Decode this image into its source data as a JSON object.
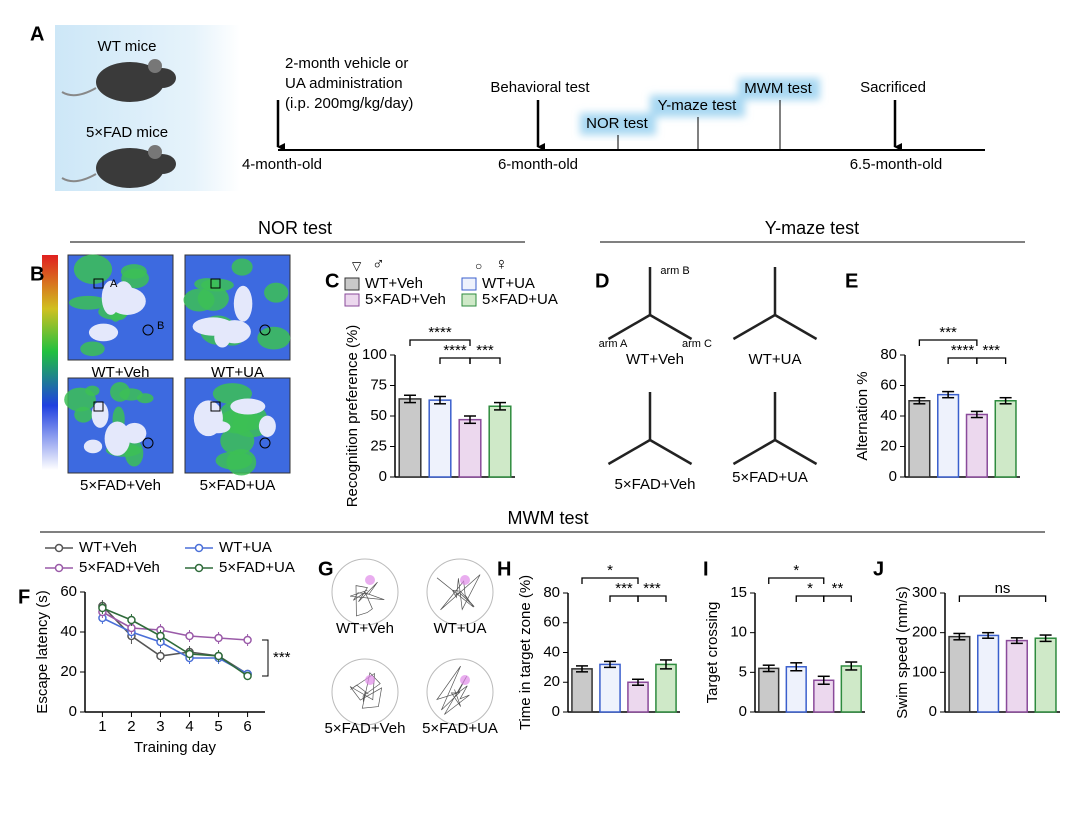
{
  "panel_letters": [
    "A",
    "B",
    "C",
    "D",
    "E",
    "F",
    "G",
    "H",
    "I",
    "J"
  ],
  "timeline": {
    "mice": [
      "WT mice",
      "5×FAD mice"
    ],
    "admin": [
      "2-month vehicle or",
      "UA administration",
      "(i.p. 200mg/kg/day)"
    ],
    "events": [
      "Behavioral test",
      "NOR test",
      "Y-maze test",
      "MWM test",
      "Sacrificed"
    ],
    "ages": [
      "4-month-old",
      "6-month-old",
      "6.5-month-old"
    ]
  },
  "sections": [
    "NOR test",
    "Y-maze test",
    "MWM test"
  ],
  "heatmap": {
    "labels": [
      "WT+Veh",
      "WT+UA",
      "5×FAD+Veh",
      "5×FAD+UA"
    ],
    "objects": [
      "A",
      "B"
    ]
  },
  "ymaze": {
    "labels": [
      "WT+Veh",
      "WT+UA",
      "5×FAD+Veh",
      "5×FAD+UA"
    ],
    "arms": [
      "arm A",
      "arm B",
      "arm C"
    ]
  },
  "traces": {
    "labels": [
      "WT+Veh",
      "WT+UA",
      "5×FAD+Veh",
      "5×FAD+UA"
    ]
  },
  "groups": [
    {
      "name": "WT+Veh",
      "fill": "#c9c9c9",
      "stroke": "#333333"
    },
    {
      "name": "WT+UA",
      "fill": "#eef2fc",
      "stroke": "#3a5fcd"
    },
    {
      "name": "5×FAD+Veh",
      "fill": "#ecd8ee",
      "stroke": "#8a4a9a"
    },
    {
      "name": "5×FAD+UA",
      "fill": "#cfe9c8",
      "stroke": "#2e8b3e"
    }
  ],
  "sex_legend": [
    {
      "symbol": "▽",
      "label": "♂"
    },
    {
      "symbol": "○",
      "label": "♀"
    }
  ],
  "chart_data": [
    {
      "type": "bar",
      "ylabel": "Recognition preference (%)",
      "values": [
        64,
        63,
        47,
        58
      ],
      "errors": [
        3,
        3,
        3,
        3
      ],
      "ylim": [
        0,
        100
      ],
      "yticks": [
        0,
        25,
        50,
        75,
        100
      ],
      "comparisons": [
        {
          "pair": [
            1,
            2
          ],
          "label": "****"
        },
        {
          "pair": [
            0,
            2
          ],
          "label": "****"
        },
        {
          "pair": [
            2,
            3
          ],
          "label": "***"
        }
      ]
    },
    {
      "type": "bar",
      "ylabel": "Alternation %",
      "values": [
        50,
        54,
        41,
        50
      ],
      "errors": [
        2,
        2,
        2,
        2
      ],
      "ylim": [
        0,
        80
      ],
      "yticks": [
        0,
        20,
        40,
        60,
        80
      ],
      "comparisons": [
        {
          "pair": [
            1,
            2
          ],
          "label": "****"
        },
        {
          "pair": [
            0,
            2
          ],
          "label": "***"
        },
        {
          "pair": [
            2,
            3
          ],
          "label": "***"
        }
      ]
    },
    {
      "type": "line",
      "xlabel": "Training day",
      "ylabel": "Escape latency (s)",
      "x": [
        1,
        2,
        3,
        4,
        5,
        6
      ],
      "xlim": [
        0.4,
        6.6
      ],
      "xticks": [
        1,
        2,
        3,
        4,
        5,
        6
      ],
      "ylim": [
        0,
        60
      ],
      "yticks": [
        0,
        20,
        40,
        60
      ],
      "annotation": "***",
      "series": [
        {
          "name": "WT+Veh",
          "color": "#555555",
          "values": [
            53,
            38,
            28,
            30,
            28,
            19
          ],
          "errors": [
            3,
            4,
            3,
            3,
            2,
            2
          ]
        },
        {
          "name": "WT+UA",
          "color": "#4a6fd8",
          "values": [
            47,
            40,
            35,
            27,
            27,
            19
          ],
          "errors": [
            3,
            3,
            3,
            3,
            3,
            2
          ]
        },
        {
          "name": "5×FAD+Veh",
          "color": "#9a5aa8",
          "values": [
            50,
            42,
            41,
            38,
            37,
            36
          ],
          "errors": [
            3,
            3,
            3,
            3,
            3,
            3
          ]
        },
        {
          "name": "5×FAD+UA",
          "color": "#2f6b3a",
          "values": [
            52,
            46,
            38,
            29,
            28,
            18
          ],
          "errors": [
            3,
            3,
            3,
            3,
            3,
            2
          ]
        }
      ]
    },
    {
      "type": "bar",
      "ylabel": "Time in target zone (%)",
      "values": [
        29,
        32,
        20,
        32
      ],
      "errors": [
        2,
        2,
        2,
        3
      ],
      "ylim": [
        0,
        80
      ],
      "yticks": [
        0,
        20,
        40,
        60,
        80
      ],
      "comparisons": [
        {
          "pair": [
            1,
            2
          ],
          "label": "***"
        },
        {
          "pair": [
            0,
            2
          ],
          "label": "*"
        },
        {
          "pair": [
            2,
            3
          ],
          "label": "***"
        }
      ]
    },
    {
      "type": "bar",
      "ylabel": "Target crossing",
      "values": [
        5.5,
        5.7,
        4.0,
        5.8
      ],
      "errors": [
        0.4,
        0.5,
        0.5,
        0.5
      ],
      "ylim": [
        0,
        15
      ],
      "yticks": [
        0,
        5,
        10,
        15
      ],
      "comparisons": [
        {
          "pair": [
            1,
            2
          ],
          "label": "*"
        },
        {
          "pair": [
            0,
            2
          ],
          "label": "*"
        },
        {
          "pair": [
            2,
            3
          ],
          "label": "**"
        }
      ]
    },
    {
      "type": "bar",
      "ylabel": "Swim speed (mm/s)",
      "values": [
        190,
        193,
        180,
        186
      ],
      "errors": [
        8,
        7,
        7,
        8
      ],
      "ylim": [
        0,
        300
      ],
      "yticks": [
        0,
        100,
        200,
        300
      ],
      "comparisons": [
        {
          "pair": [
            0,
            3
          ],
          "label": "ns"
        }
      ]
    }
  ]
}
